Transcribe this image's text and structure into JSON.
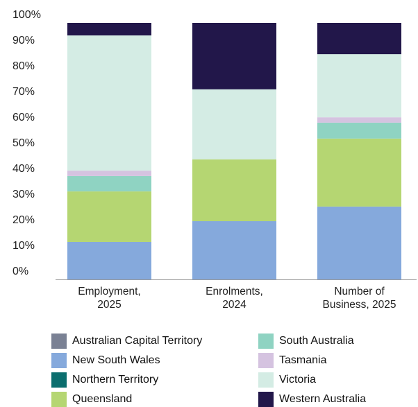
{
  "chart_data": {
    "type": "stacked_bar",
    "categories": [
      "Employment, 2025",
      "Enrolments, 2024",
      "Number of Business, 2025"
    ],
    "series": [
      {
        "name": "Australian Capital Territory",
        "color": "#7a8194",
        "values": [
          0,
          0,
          0
        ]
      },
      {
        "name": "New South Wales",
        "color": "#85a9dc",
        "values": [
          14.6,
          22.7,
          28.4
        ]
      },
      {
        "name": "Northern Territory",
        "color": "#0b6e6e",
        "values": [
          0,
          0,
          0
        ]
      },
      {
        "name": "Queensland",
        "color": "#b5d672",
        "values": [
          19.7,
          24.1,
          26.5
        ]
      },
      {
        "name": "South Australia",
        "color": "#8fd3c2",
        "values": [
          6.0,
          0,
          6.2
        ]
      },
      {
        "name": "Tasmania",
        "color": "#d5c3e0",
        "values": [
          2.1,
          0,
          2.1
        ]
      },
      {
        "name": "Victoria",
        "color": "#d4ece4",
        "values": [
          52.7,
          27.3,
          24.6
        ]
      },
      {
        "name": "Western Australia",
        "color": "#22174a",
        "values": [
          4.9,
          25.9,
          12.2
        ]
      }
    ],
    "ylim": [
      0,
      100
    ],
    "yticks": [
      {
        "value": 0,
        "label": "0%"
      },
      {
        "value": 10,
        "label": "10%"
      },
      {
        "value": 20,
        "label": "20%"
      },
      {
        "value": 30,
        "label": "30%"
      },
      {
        "value": 40,
        "label": "40%"
      },
      {
        "value": 50,
        "label": "50%"
      },
      {
        "value": 60,
        "label": "60%"
      },
      {
        "value": 70,
        "label": "70%"
      },
      {
        "value": 80,
        "label": "80%"
      },
      {
        "value": 90,
        "label": "90%"
      },
      {
        "value": 100,
        "label": "100%"
      }
    ],
    "grid": false
  }
}
